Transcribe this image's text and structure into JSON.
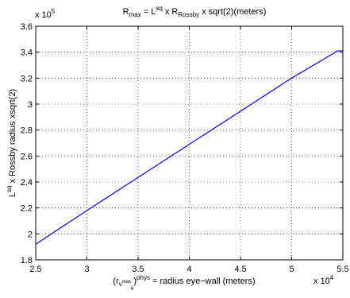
{
  "chart_data": {
    "type": "line",
    "title": {
      "lhs_base": "R",
      "lhs_sub": "max",
      "eq": " = L",
      "sup": "sq",
      "mid": " x R",
      "sub2": "Rossby",
      "tail": " x sqrt(2)(meters)"
    },
    "xlabel": {
      "open": "(r",
      "sub": "v",
      "subsub": "max",
      "subsubsub": "θ",
      "close": ")",
      "sup": "phys",
      "tail": " = radius eye−wall (meters)"
    },
    "ylabel": {
      "base": "L",
      "sup": "sq",
      "tail": " x Rossby radius xsqrt(2)"
    },
    "x_multiplier": {
      "base": "x 10",
      "exp": "4"
    },
    "y_multiplier": {
      "base": "x 10",
      "exp": "5"
    },
    "xlim": [
      25000,
      55000
    ],
    "ylim": [
      180000,
      360000
    ],
    "x_ticks": [
      25000,
      30000,
      35000,
      40000,
      45000,
      50000,
      55000
    ],
    "x_tick_labels": [
      "2.5",
      "3",
      "3.5",
      "4",
      "4.5",
      "5",
      "5.5"
    ],
    "y_ticks": [
      180000,
      200000,
      220000,
      240000,
      260000,
      280000,
      300000,
      320000,
      340000,
      360000
    ],
    "y_tick_labels": [
      "1.8",
      "2",
      "2.2",
      "2.4",
      "2.6",
      "2.8",
      "3",
      "3.2",
      "3.4",
      "3.6"
    ],
    "grid": true,
    "series": [
      {
        "color": "#0000ff",
        "x": [
          25000,
          30000,
          35000,
          40000,
          45000,
          50000,
          54500,
          55000
        ],
        "y": [
          192000,
          218000,
          243500,
          269000,
          294500,
          320000,
          341000,
          341000
        ]
      }
    ]
  }
}
